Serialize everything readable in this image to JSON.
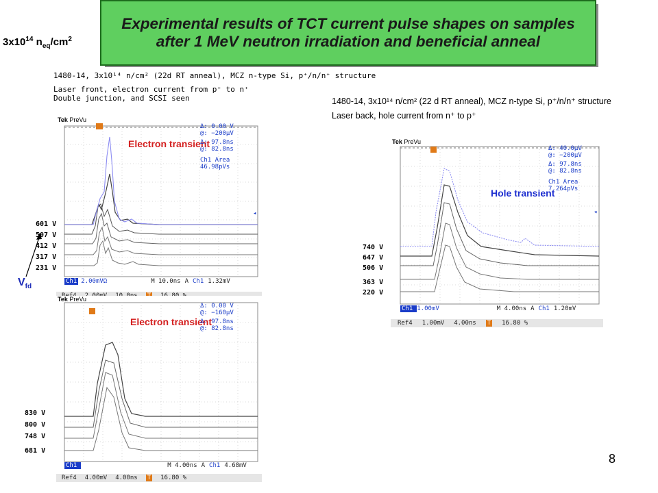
{
  "title": "Experimental results of TCT current pulse shapes on samples after 1 MeV neutron irradiation and beneficial anneal",
  "fluence": {
    "base": "3x10",
    "exp": "14",
    "n": " n",
    "sub": "eq",
    "unit": "/cm",
    "unit_exp": "2"
  },
  "page_number": "8",
  "vfd": {
    "v": "V",
    "sub": "fd"
  },
  "panel_a": {
    "note_lines": [
      "1480-14, 3x10¹⁴ n/cm² (22d RT anneal), MCZ n-type Si, p⁺/n/n⁺ structure",
      "Laser front, electron current from p⁺ to n⁺",
      "Double junction, and SCSI seen"
    ],
    "label": "Electron transient",
    "tek": "Tek",
    "prevu": "PreVu",
    "readout": [
      "Δ:  0.00 V",
      "@: −200μV",
      "Δ:  97.8ns",
      "@:  82.8ns",
      "Ch1 Area",
      "46.98pVs"
    ],
    "voltages": [
      "601 V",
      "507 V",
      "412 V",
      "317 V",
      "231 V"
    ],
    "bottom": [
      "Ch1",
      "2.00mVΩ",
      "M 10.0ns",
      "A",
      "Ch1",
      "1.32mV"
    ],
    "ref": [
      "Ref4",
      "2.00mV",
      "10.0ns",
      "T",
      "16.80 %"
    ]
  },
  "panel_b": {
    "note_lines": [
      "1480-14, 3x10¹⁴ n/cm² (22 d RT anneal), MCZ n-type Si, p⁺/n/n⁺ structure",
      "Laser back, hole current from n⁺ to p⁺"
    ],
    "label": "Hole transient",
    "tek": "Tek",
    "prevu": "PreVu",
    "readout": [
      "Δ:  40.0μV",
      "@: −200μV",
      "Δ:  97.8ns",
      "@:  82.8ns",
      "Ch1 Area",
      "7.264pVs"
    ],
    "voltages": [
      "740 V",
      "647 V",
      "506 V",
      "363 V",
      "220 V"
    ],
    "bottom": [
      "Ch1",
      "1.00mV",
      "M 4.00ns",
      "A",
      "Ch1",
      "1.20mV"
    ],
    "ref": [
      "Ref4",
      "1.00mV",
      "4.00ns",
      "T",
      "16.80 %"
    ]
  },
  "panel_c": {
    "label": "Electron transient",
    "tek": "Tek",
    "prevu": "PreVu",
    "readout": [
      "Δ:  0.00 V",
      "@: −160μV",
      "Δ:  97.8ns",
      "@:  82.8ns"
    ],
    "voltages": [
      "830 V",
      "800 V",
      "748 V",
      "681 V"
    ],
    "bottom": [
      "Ch1",
      "",
      "M 4.00ns",
      "A",
      "Ch1",
      "4.68mV"
    ],
    "ref": [
      "Ref4",
      "4.00mV",
      "4.00ns",
      "T",
      "16.80 %"
    ]
  }
}
